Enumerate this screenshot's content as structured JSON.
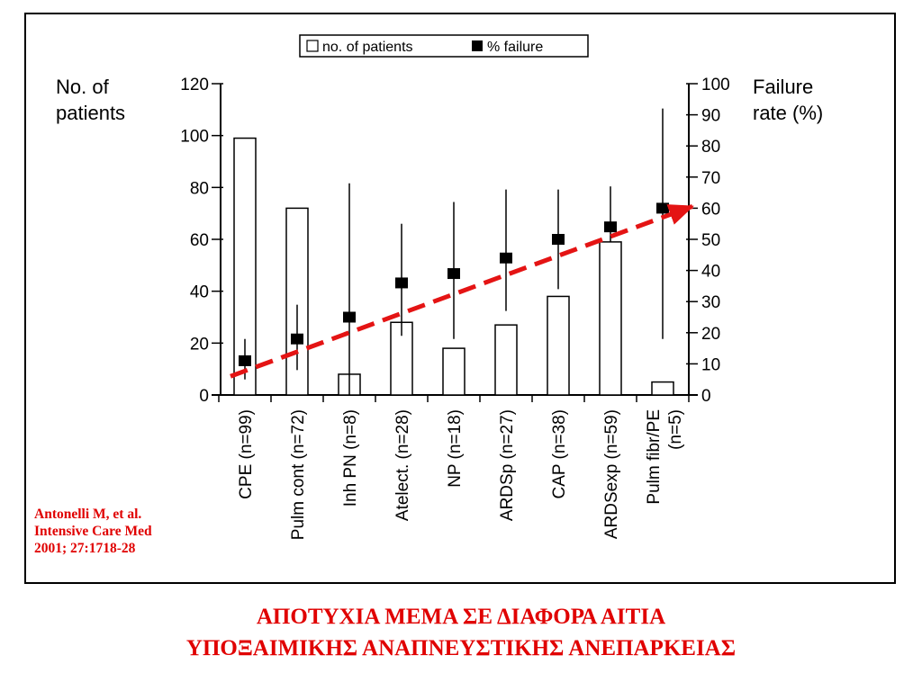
{
  "chart_data": {
    "type": "bar",
    "categories": [
      "CPE",
      "Pulm cont",
      "Inh PN",
      "Atelect.",
      "NP",
      "ARDSp",
      "CAP",
      "ARDSexp",
      "Pulm fibr/PE"
    ],
    "n_labels": [
      "(n=99)",
      "(n=72)",
      "(n=8)",
      "(n=28)",
      "(n=18)",
      "(n=27)",
      "(n=38)",
      "(n=59)",
      "(n=5)"
    ],
    "series": [
      {
        "name": "no. of patients",
        "axis": "left",
        "mark": "bar",
        "values": [
          99,
          72,
          8,
          28,
          18,
          27,
          38,
          59,
          5
        ]
      },
      {
        "name": "% failure",
        "axis": "right",
        "mark": "square-with-error-bar",
        "values": [
          11,
          18,
          25,
          36,
          39,
          44,
          50,
          54,
          60
        ],
        "error_low": [
          5,
          8,
          0,
          19,
          18,
          27,
          34,
          49,
          18
        ],
        "error_high": [
          18,
          29,
          68,
          55,
          62,
          66,
          66,
          67,
          92
        ]
      }
    ],
    "trend_arrow": {
      "color": "#e41414",
      "from_failure": 6,
      "to_failure": 60
    },
    "ylabel_left": [
      "No. of",
      "patients"
    ],
    "ylabel_right": [
      "Failure",
      "rate (%)"
    ],
    "ylim_left": [
      0,
      120
    ],
    "ylim_right": [
      0,
      100
    ],
    "yticks_left": [
      0,
      20,
      40,
      60,
      80,
      100,
      120
    ],
    "yticks_right": [
      0,
      10,
      20,
      30,
      40,
      50,
      60,
      70,
      80,
      90,
      100
    ],
    "legend": {
      "position": "top-center",
      "entries": [
        "no. of patients",
        "% failure"
      ]
    },
    "grid": false
  },
  "citation": [
    "Antonelli M, et al.",
    "Intensive Care Med",
    "2001; 27:1718-28"
  ],
  "slide_title": [
    "ΑΠΟΤΥΧΙΑ ΜΕΜΑ ΣΕ ΔΙΑΦΟΡΑ ΑΙΤΙΑ",
    "ΥΠΟΞΑΙΜΙΚΗΣ ΑΝΑΠΝΕΥΣΤΙΚΗΣ ΑΝΕΠΑΡΚΕΙΑΣ"
  ],
  "colors": {
    "accent_red": "#e00000",
    "bars": "#000000"
  }
}
